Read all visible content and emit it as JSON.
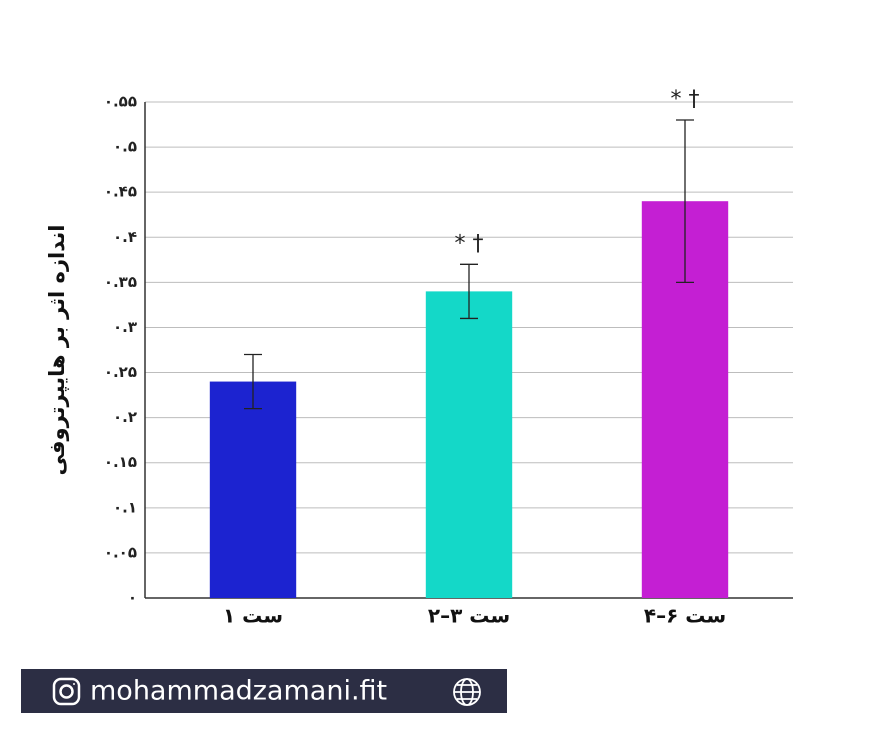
{
  "chart_data": {
    "type": "bar",
    "y_label": "اندازه اثر بر هایپرتروفی",
    "categories": [
      "۱ ست",
      "۲–۳ ست",
      "۴–۶ ست"
    ],
    "values": [
      0.24,
      0.34,
      0.44
    ],
    "errors": [
      0.03,
      0.03,
      0.09
    ],
    "colors": [
      "#1c23d0",
      "#14d8c8",
      "#c41fd3"
    ],
    "markers": [
      null,
      "* †",
      "* †"
    ],
    "ylim": [
      0,
      0.55
    ],
    "yticks": [
      {
        "value": 0,
        "label": "۰"
      },
      {
        "value": 0.05,
        "label": "۰.۰۵"
      },
      {
        "value": 0.1,
        "label": "۰.۱"
      },
      {
        "value": 0.15,
        "label": "۰.۱۵"
      },
      {
        "value": 0.2,
        "label": "۰.۲"
      },
      {
        "value": 0.25,
        "label": "۰.۲۵"
      },
      {
        "value": 0.3,
        "label": "۰.۳"
      },
      {
        "value": 0.35,
        "label": "۰.۳۵"
      },
      {
        "value": 0.4,
        "label": "۰.۴"
      },
      {
        "value": 0.45,
        "label": "۰.۴۵"
      },
      {
        "value": 0.5,
        "label": "۰.۵"
      },
      {
        "value": 0.55,
        "label": "۰.۵۵"
      }
    ],
    "grid": true
  },
  "footer": {
    "text": "mohammadzamani.fit"
  }
}
